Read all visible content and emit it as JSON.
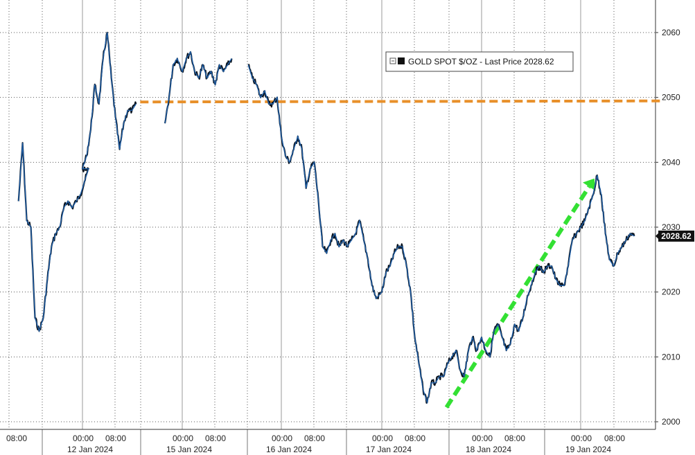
{
  "chart_data": {
    "type": "line",
    "title": "",
    "xlabel": "",
    "ylabel": "",
    "ylim": [
      2000,
      2066
    ],
    "y_ticks": [
      2000,
      2010,
      2020,
      2030,
      2040,
      2050,
      2060
    ],
    "y_axis_side": "right",
    "grid": true,
    "legend": {
      "label": "GOLD SPOT $/OZ - Last Price 2028.62",
      "placement": "top-right"
    },
    "last_price": {
      "value": 2028.62,
      "label": "2028.62",
      "color": "#111111"
    },
    "x_time_labels": [
      "08:00",
      "00:00",
      "08:00",
      "00:00",
      "08:00",
      "00:00",
      "08:00",
      "00:00",
      "08:00",
      "00:00",
      "08:00",
      "00:00",
      "08:00"
    ],
    "x_date_labels": [
      "12 Jan 2024",
      "15 Jan 2024",
      "16 Jan 2024",
      "17 Jan 2024",
      "18 Jan 2024",
      "19 Jan 2024"
    ],
    "series": [
      {
        "name": "GOLD SPOT $/OZ",
        "color": "#1f5fa8",
        "segments": [
          [
            [
              "11 Jan 06:00",
              2034
            ],
            [
              "11 Jan 07:00",
              2043
            ],
            [
              "11 Jan 08:00",
              2031
            ],
            [
              "11 Jan 09:00",
              2030
            ],
            [
              "11 Jan 10:00",
              2016
            ],
            [
              "11 Jan 11:00",
              2014
            ],
            [
              "11 Jan 12:00",
              2016
            ],
            [
              "11 Jan 13:00",
              2022
            ],
            [
              "11 Jan 14:00",
              2027
            ],
            [
              "11 Jan 15:00",
              2029
            ],
            [
              "11 Jan 16:00",
              2030
            ],
            [
              "11 Jan 17:00",
              2033
            ],
            [
              "11 Jan 18:00",
              2034
            ],
            [
              "11 Jan 19:00",
              2033
            ],
            [
              "11 Jan 20:00",
              2034
            ],
            [
              "11 Jan 21:00",
              2035
            ],
            [
              "11 Jan 22:00",
              2037
            ],
            [
              "11 Jan 23:00",
              2039
            ],
            [
              "12 Jan 00:00",
              2039
            ],
            [
              "12 Jan 01:00",
              2041
            ],
            [
              "12 Jan 02:00",
              2045
            ],
            [
              "12 Jan 03:00",
              2052
            ],
            [
              "12 Jan 04:00",
              2049
            ],
            [
              "12 Jan 05:00",
              2056
            ],
            [
              "12 Jan 06:00",
              2060
            ],
            [
              "12 Jan 07:00",
              2053
            ],
            [
              "12 Jan 08:00",
              2047
            ],
            [
              "12 Jan 09:00",
              2042
            ],
            [
              "12 Jan 10:00",
              2046
            ],
            [
              "12 Jan 11:00",
              2048
            ],
            [
              "12 Jan 12:00",
              2048
            ],
            [
              "12 Jan 13:00",
              2049
            ]
          ],
          [
            [
              "12 Jan 20:00",
              2046
            ],
            [
              "12 Jan 21:00",
              2050
            ],
            [
              "12 Jan 22:00",
              2055
            ],
            [
              "12 Jan 23:00",
              2056
            ],
            [
              "15 Jan 00:00",
              2054
            ],
            [
              "15 Jan 01:00",
              2056
            ],
            [
              "15 Jan 02:00",
              2057
            ],
            [
              "15 Jan 03:00",
              2054
            ],
            [
              "15 Jan 04:00",
              2053
            ],
            [
              "15 Jan 05:00",
              2055
            ],
            [
              "15 Jan 06:00",
              2053
            ],
            [
              "15 Jan 07:00",
              2054
            ],
            [
              "15 Jan 08:00",
              2052
            ],
            [
              "15 Jan 09:00",
              2055
            ],
            [
              "15 Jan 10:00",
              2054
            ],
            [
              "15 Jan 11:00",
              2055
            ],
            [
              "15 Jan 12:00",
              2056
            ]
          ],
          [
            [
              "15 Jan 16:00",
              2055
            ],
            [
              "15 Jan 17:00",
              2053
            ],
            [
              "15 Jan 18:00",
              2052
            ],
            [
              "15 Jan 19:00",
              2050
            ],
            [
              "15 Jan 20:00",
              2051
            ],
            [
              "15 Jan 21:00",
              2049
            ],
            [
              "15 Jan 22:00",
              2049
            ],
            [
              "15 Jan 23:00",
              2050
            ],
            [
              "16 Jan 00:00",
              2044
            ],
            [
              "16 Jan 01:00",
              2041
            ],
            [
              "16 Jan 02:00",
              2040
            ],
            [
              "16 Jan 03:00",
              2042
            ],
            [
              "16 Jan 04:00",
              2044
            ],
            [
              "16 Jan 05:00",
              2042
            ],
            [
              "16 Jan 06:00",
              2036
            ],
            [
              "16 Jan 07:00",
              2039
            ],
            [
              "16 Jan 08:00",
              2040
            ],
            [
              "16 Jan 09:00",
              2034
            ],
            [
              "16 Jan 10:00",
              2027
            ],
            [
              "16 Jan 11:00",
              2026
            ],
            [
              "16 Jan 12:00",
              2028
            ],
            [
              "16 Jan 13:00",
              2029
            ],
            [
              "16 Jan 14:00",
              2027
            ],
            [
              "16 Jan 15:00",
              2028
            ],
            [
              "16 Jan 16:00",
              2027
            ],
            [
              "16 Jan 17:00",
              2028
            ],
            [
              "16 Jan 18:00",
              2029
            ],
            [
              "16 Jan 19:00",
              2031
            ],
            [
              "16 Jan 20:00",
              2028
            ],
            [
              "16 Jan 21:00",
              2025
            ],
            [
              "16 Jan 22:00",
              2021
            ],
            [
              "16 Jan 23:00",
              2019
            ],
            [
              "17 Jan 00:00",
              2020
            ],
            [
              "17 Jan 01:00",
              2023
            ],
            [
              "17 Jan 02:00",
              2024
            ],
            [
              "17 Jan 03:00",
              2026
            ],
            [
              "17 Jan 04:00",
              2027
            ],
            [
              "17 Jan 05:00",
              2027
            ],
            [
              "17 Jan 06:00",
              2024
            ],
            [
              "17 Jan 07:00",
              2020
            ],
            [
              "17 Jan 08:00",
              2013
            ],
            [
              "17 Jan 09:00",
              2009
            ],
            [
              "17 Jan 10:00",
              2005
            ],
            [
              "17 Jan 11:00",
              2003
            ],
            [
              "17 Jan 12:00",
              2006
            ],
            [
              "17 Jan 13:00",
              2006
            ],
            [
              "17 Jan 14:00",
              2007
            ],
            [
              "17 Jan 15:00",
              2007
            ],
            [
              "17 Jan 16:00",
              2009
            ],
            [
              "17 Jan 17:00",
              2010
            ],
            [
              "17 Jan 18:00",
              2011
            ],
            [
              "17 Jan 19:00",
              2008
            ],
            [
              "17 Jan 20:00",
              2007
            ],
            [
              "17 Jan 21:00",
              2011
            ],
            [
              "17 Jan 22:00",
              2013
            ],
            [
              "17 Jan 23:00",
              2011
            ],
            [
              "18 Jan 00:00",
              2013
            ],
            [
              "18 Jan 01:00",
              2011
            ],
            [
              "18 Jan 02:00",
              2010
            ],
            [
              "18 Jan 03:00",
              2014
            ],
            [
              "18 Jan 04:00",
              2015
            ],
            [
              "18 Jan 05:00",
              2013
            ],
            [
              "18 Jan 06:00",
              2011
            ],
            [
              "18 Jan 07:00",
              2012
            ],
            [
              "18 Jan 08:00",
              2015
            ],
            [
              "18 Jan 09:00",
              2014
            ],
            [
              "18 Jan 10:00",
              2016
            ],
            [
              "18 Jan 11:00",
              2019
            ],
            [
              "18 Jan 12:00",
              2021
            ],
            [
              "18 Jan 13:00",
              2023
            ],
            [
              "18 Jan 14:00",
              2024
            ],
            [
              "18 Jan 15:00",
              2023
            ],
            [
              "18 Jan 16:00",
              2024
            ],
            [
              "18 Jan 17:00",
              2024
            ],
            [
              "18 Jan 18:00",
              2022
            ],
            [
              "18 Jan 19:00",
              2021
            ],
            [
              "18 Jan 20:00",
              2021
            ],
            [
              "18 Jan 21:00",
              2024
            ],
            [
              "18 Jan 22:00",
              2028
            ],
            [
              "18 Jan 23:00",
              2029
            ],
            [
              "19 Jan 00:00",
              2030
            ],
            [
              "19 Jan 01:00",
              2031
            ],
            [
              "19 Jan 02:00",
              2033
            ],
            [
              "19 Jan 03:00",
              2035
            ],
            [
              "19 Jan 04:00",
              2038
            ],
            [
              "19 Jan 05:00",
              2035
            ],
            [
              "19 Jan 06:00",
              2029
            ],
            [
              "19 Jan 07:00",
              2025
            ],
            [
              "19 Jan 08:00",
              2024
            ],
            [
              "19 Jan 09:00",
              2026
            ],
            [
              "19 Jan 10:00",
              2027
            ],
            [
              "19 Jan 11:00",
              2028
            ],
            [
              "19 Jan 12:00",
              2029
            ],
            [
              "19 Jan 13:00",
              2028.62
            ]
          ]
        ]
      }
    ],
    "annotations": [
      {
        "type": "horizontal-dashed-line",
        "value": 2049.3,
        "from": "12 Jan 14:00",
        "to": "right-edge",
        "color": "#e8902a"
      },
      {
        "type": "dashed-arrow",
        "from": [
          "17 Jan 14:00",
          2002
        ],
        "to": [
          "19 Jan 04:00",
          2037.5
        ],
        "color": "#33e033"
      }
    ]
  }
}
